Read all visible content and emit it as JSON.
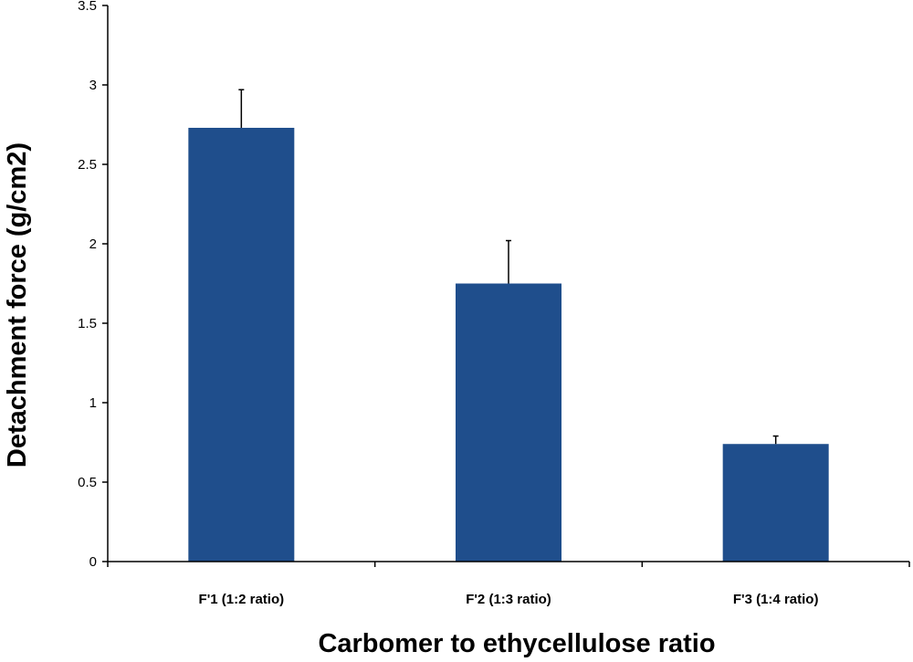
{
  "chart_data": {
    "type": "bar",
    "title": "",
    "xlabel": "Carbomer to ethycellulose ratio",
    "ylabel": "Detachment force (g/cm2)",
    "categories": [
      "F'1 (1:2 ratio)",
      "F'2 (1:3 ratio)",
      "F'3 (1:4 ratio)"
    ],
    "series": [
      {
        "values": [
          2.73,
          1.75,
          0.74
        ],
        "error": [
          0.24,
          0.27,
          0.05
        ],
        "color": "#1f4e8c"
      }
    ],
    "ylim": [
      0,
      3.5
    ],
    "yticks": [
      "0",
      "0.5",
      "1",
      "1.5",
      "2",
      "2.5",
      "3",
      "3.5"
    ],
    "grid": false,
    "legend": "none"
  }
}
